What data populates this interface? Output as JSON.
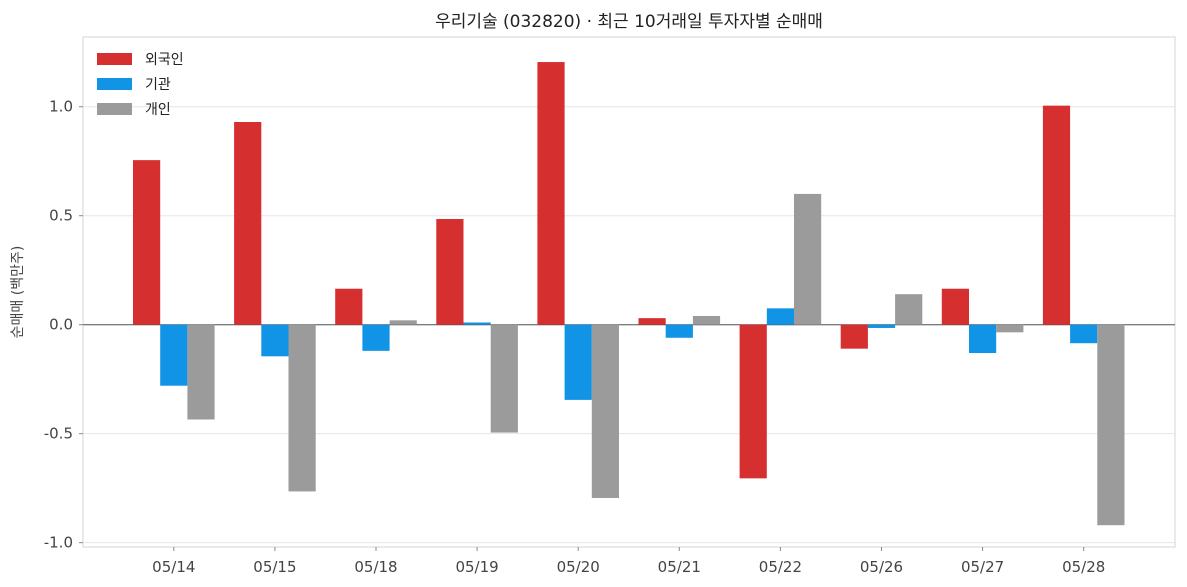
{
  "chart_data": {
    "type": "bar",
    "title": "우리기술 (032820)  ·  최근 10거래일 투자자별 순매매",
    "xlabel": "",
    "ylabel": "순매매 (백만주)",
    "categories": [
      "05/14",
      "05/15",
      "05/18",
      "05/19",
      "05/20",
      "05/21",
      "05/22",
      "05/26",
      "05/27",
      "05/28"
    ],
    "series": [
      {
        "name": "외국인",
        "color": "#d62f2f",
        "values": [
          0.755,
          0.93,
          0.165,
          0.485,
          1.205,
          0.03,
          -0.705,
          -0.11,
          0.165,
          1.005
        ]
      },
      {
        "name": "기관",
        "color": "#1193e6",
        "values": [
          -0.28,
          -0.145,
          -0.12,
          0.01,
          -0.345,
          -0.06,
          0.075,
          -0.015,
          -0.13,
          -0.085
        ]
      },
      {
        "name": "개인",
        "color": "#9b9b9b",
        "values": [
          -0.435,
          -0.765,
          0.02,
          -0.495,
          -0.795,
          0.04,
          0.6,
          0.14,
          -0.035,
          -0.92
        ]
      }
    ],
    "ylim": [
      -1.02,
      1.32
    ],
    "yticks": [
      1.0,
      0.5,
      0.0,
      -0.5,
      -1.0
    ],
    "ytick_labels": [
      "1.0",
      "0.5",
      "0.0",
      "-0.5",
      "-1.0"
    ],
    "grid": true,
    "legend_position": "top-left"
  }
}
